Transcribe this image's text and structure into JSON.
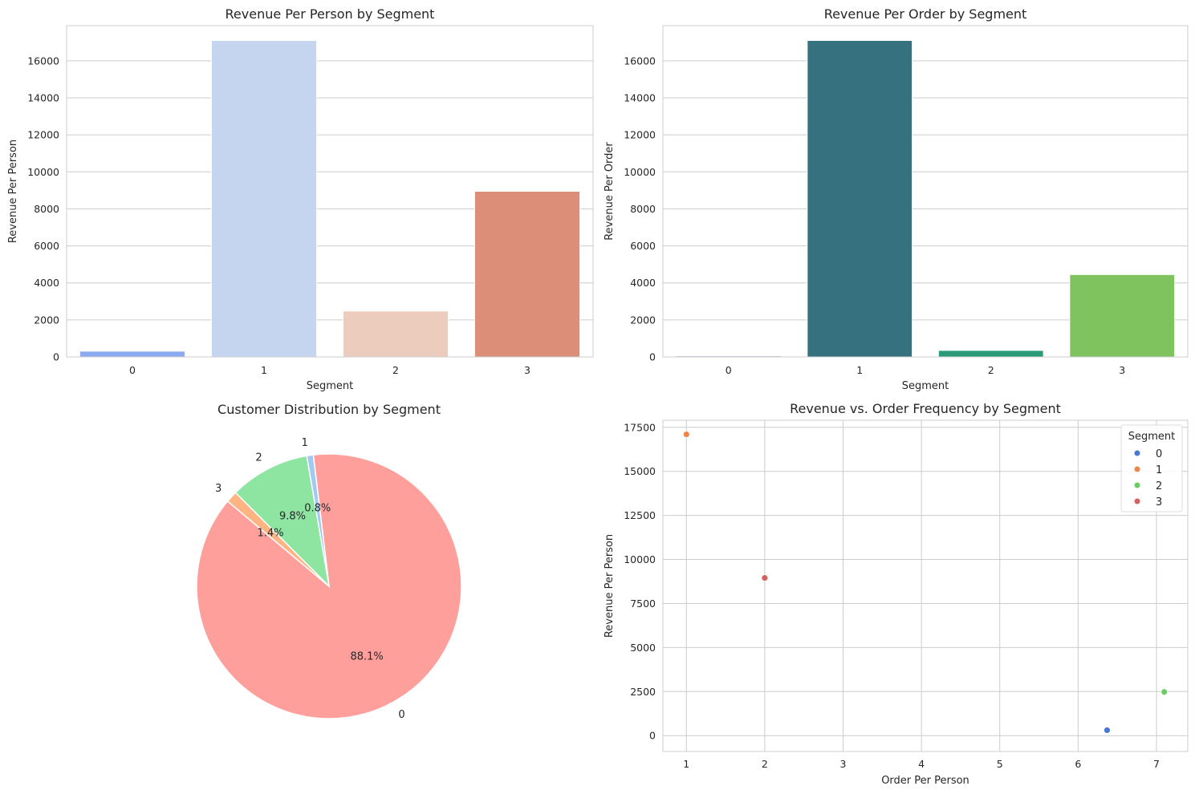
{
  "chart_data": [
    {
      "type": "bar",
      "title": "Revenue Per Person by Segment",
      "xlabel": "Segment",
      "ylabel": "Revenue Per Person",
      "categories": [
        "0",
        "1",
        "2",
        "3"
      ],
      "values": [
        310,
        17100,
        2480,
        8950
      ],
      "colors": [
        "#8caaf0",
        "#c6d5ef",
        "#eccdbd",
        "#dc8e78"
      ],
      "ylim": [
        0,
        17900
      ],
      "yticks": [
        0,
        2000,
        4000,
        6000,
        8000,
        10000,
        12000,
        14000,
        16000
      ],
      "grid": true
    },
    {
      "type": "bar",
      "title": "Revenue Per Order by Segment",
      "xlabel": "Segment",
      "ylabel": "Revenue Per Order",
      "categories": [
        "0",
        "1",
        "2",
        "3"
      ],
      "values": [
        50,
        17100,
        350,
        4450
      ],
      "colors": [
        "#46337e",
        "#367180",
        "#2b9a79",
        "#7fc35f"
      ],
      "ylim": [
        0,
        17900
      ],
      "yticks": [
        0,
        2000,
        4000,
        6000,
        8000,
        10000,
        12000,
        14000,
        16000
      ],
      "grid": true
    },
    {
      "type": "pie",
      "title": "Customer Distribution by Segment",
      "labels": [
        "0",
        "1",
        "2",
        "3"
      ],
      "values": [
        88.1,
        0.8,
        9.8,
        1.4
      ],
      "pct_labels": [
        "88.1%",
        "0.8%",
        "9.8%",
        "1.4%"
      ],
      "colors": [
        "#ff9f9b",
        "#a1c9f4",
        "#8de5a1",
        "#ffb482"
      ],
      "start_angle": 140
    },
    {
      "type": "scatter",
      "title": "Revenue vs. Order Frequency by Segment",
      "xlabel": "Order Per Person",
      "ylabel": "Revenue Per Person",
      "xlim": [
        0.7,
        7.4
      ],
      "ylim": [
        -900,
        17900
      ],
      "xticks": [
        1,
        2,
        3,
        4,
        5,
        6,
        7
      ],
      "yticks": [
        0,
        2500,
        5000,
        7500,
        10000,
        12500,
        15000,
        17500
      ],
      "grid": true,
      "legend": {
        "title": "Segment",
        "position": "top-right"
      },
      "series": [
        {
          "name": "0",
          "color": "#4878d0",
          "x": [
            6.37
          ],
          "y": [
            310
          ]
        },
        {
          "name": "1",
          "color": "#ee854a",
          "x": [
            1.0
          ],
          "y": [
            17100
          ]
        },
        {
          "name": "2",
          "color": "#6acc64",
          "x": [
            7.1
          ],
          "y": [
            2480
          ]
        },
        {
          "name": "3",
          "color": "#d65f5f",
          "x": [
            2.0
          ],
          "y": [
            8950
          ]
        }
      ]
    }
  ]
}
